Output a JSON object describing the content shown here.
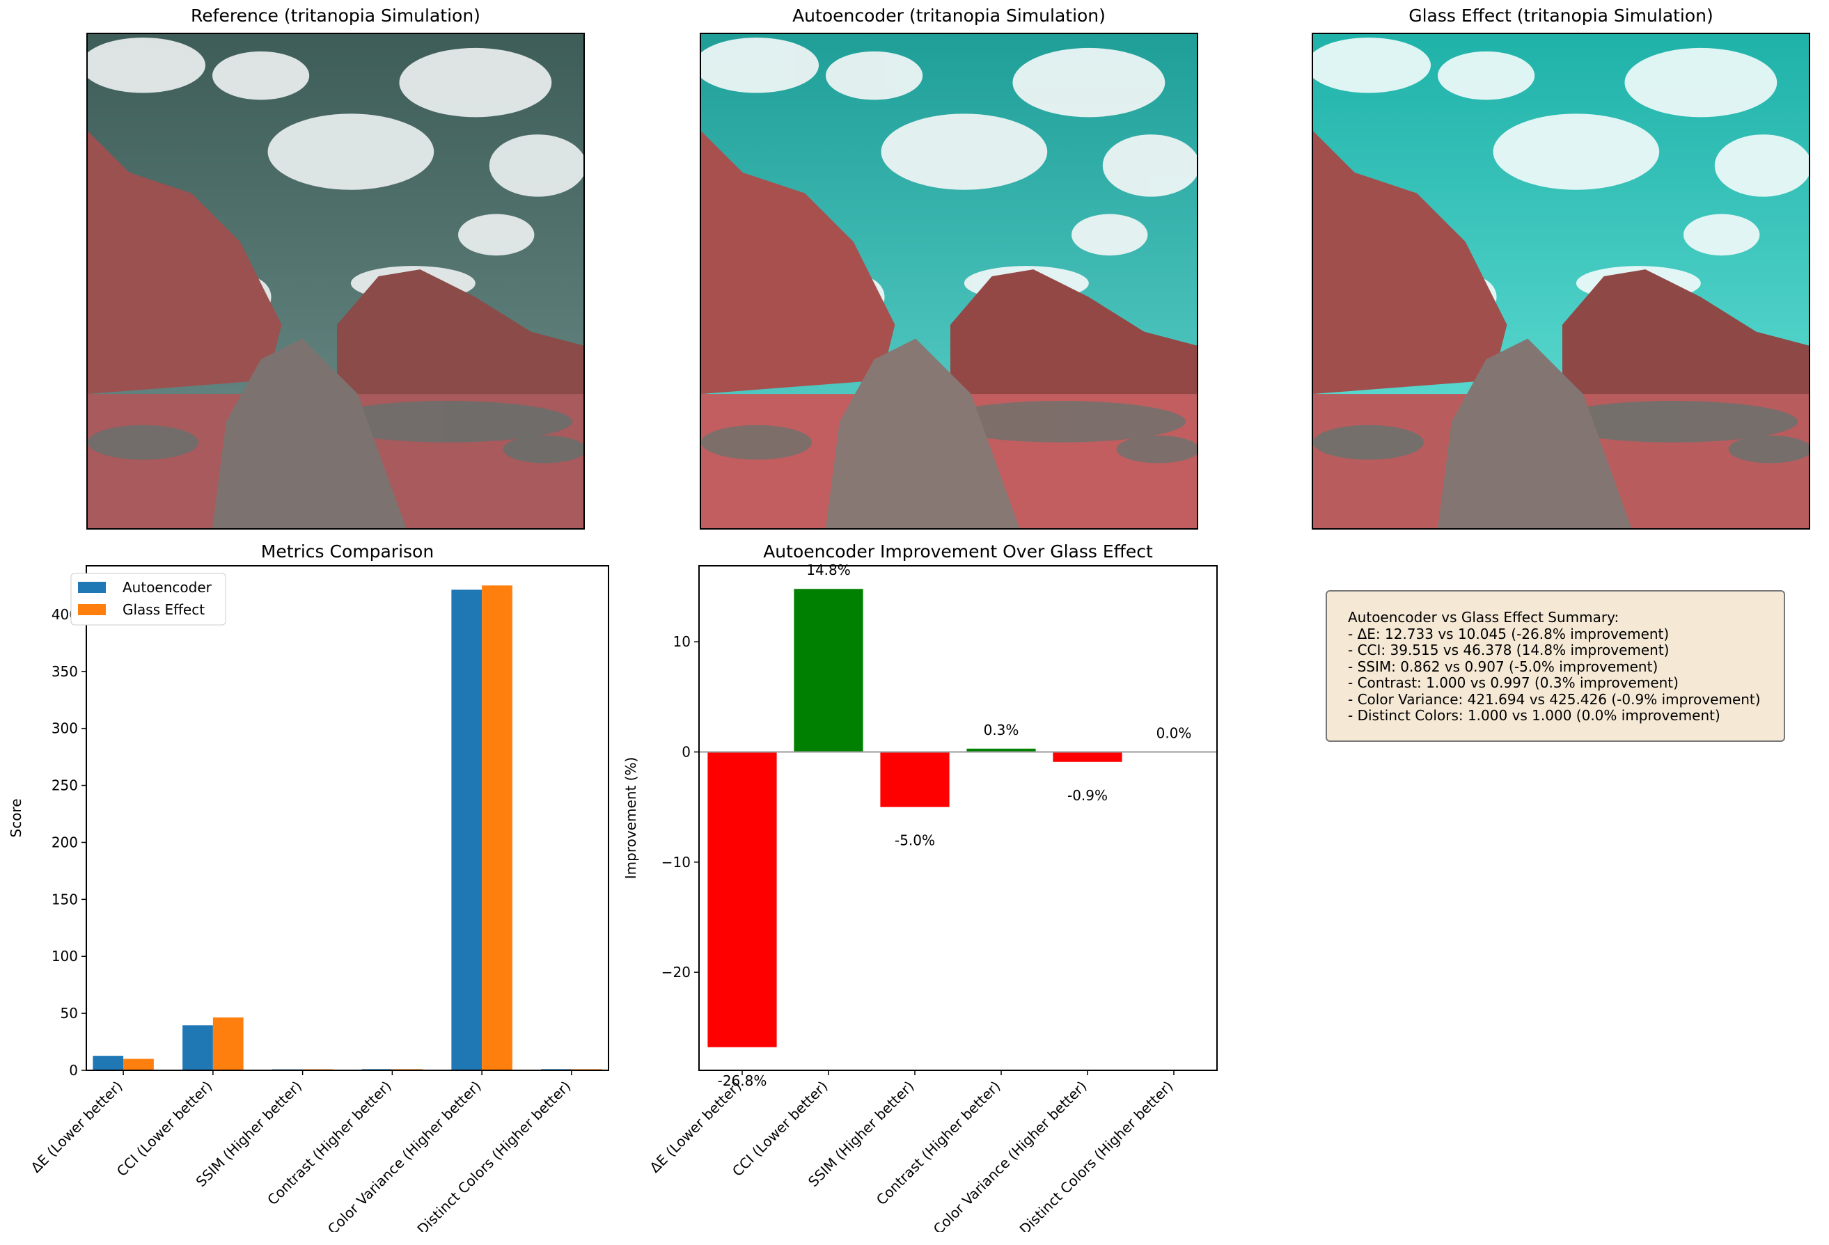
{
  "panels": {
    "reference_title": "Reference (tritanopia Simulation)",
    "autoencoder_title": "Autoencoder (tritanopia Simulation)",
    "glass_title": "Glass Effect (tritanopia Simulation)"
  },
  "summary": {
    "heading": "Autoencoder vs Glass Effect Summary:",
    "lines": [
      "- ΔE: 12.733 vs 10.045 (-26.8% improvement)",
      "- CCI: 39.515 vs 46.378 (14.8% improvement)",
      "- SSIM: 0.862 vs 0.907 (-5.0% improvement)",
      "- Contrast: 1.000 vs 0.997 (0.3% improvement)",
      "- Color Variance: 421.694 vs 425.426 (-0.9% improvement)",
      "- Distinct Colors: 1.000 vs 1.000 (0.0% improvement)"
    ]
  },
  "colors": {
    "autoencoder": "#1f77b4",
    "glass": "#ff7f0e",
    "positive": "#008000",
    "negative": "#ff0000"
  },
  "chart_data": [
    {
      "type": "bar",
      "title": "Metrics Comparison",
      "xlabel": "",
      "ylabel": "Score",
      "categories": [
        "ΔE (Lower better)",
        "CCI (Lower better)",
        "SSIM (Higher better)",
        "Contrast (Higher better)",
        "Color Variance (Higher better)",
        "Distinct Colors (Higher better)"
      ],
      "series": [
        {
          "name": "Autoencoder",
          "values": [
            12.733,
            39.515,
            0.862,
            1.0,
            421.694,
            1.0
          ]
        },
        {
          "name": "Glass Effect",
          "values": [
            10.045,
            46.378,
            0.907,
            0.997,
            425.426,
            1.0
          ]
        }
      ],
      "ylim": [
        0,
        442.7
      ],
      "yticks": [
        0,
        50,
        100,
        150,
        200,
        250,
        300,
        350,
        400
      ],
      "legend": "top-left",
      "grid": false
    },
    {
      "type": "bar",
      "title": "Autoencoder Improvement Over Glass Effect",
      "xlabel": "",
      "ylabel": "Improvement (%)",
      "categories": [
        "ΔE (Lower better)",
        "CCI (Lower better)",
        "SSIM (Higher better)",
        "Contrast (Higher better)",
        "Color Variance (Higher better)",
        "Distinct Colors (Higher better)"
      ],
      "values": [
        -26.8,
        14.8,
        -5.0,
        0.3,
        -0.9,
        0.0
      ],
      "labels": [
        "-26.8%",
        "14.8%",
        "-5.0%",
        "0.3%",
        "-0.9%",
        "0.0%"
      ],
      "ylim": [
        -28.9,
        16.9
      ],
      "yticks": [
        -20,
        -10,
        0,
        10
      ],
      "zero_line": true,
      "grid": false
    }
  ]
}
